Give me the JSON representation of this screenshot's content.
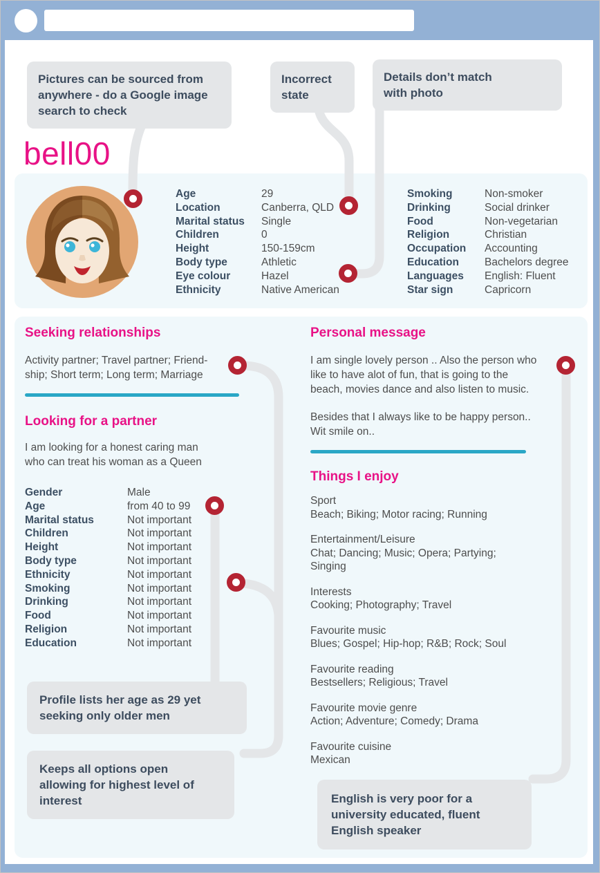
{
  "colors": {
    "blue": "#93b1d5",
    "panel": "#f0f8fb",
    "callout": "#e4e6e8",
    "slate": "#3d4c5e",
    "pink": "#e81286",
    "teal": "#2aa7c6",
    "red": "#b42433",
    "text": "#4d4d4d",
    "label": "#3c4f63"
  },
  "chrome": {
    "address_value": ""
  },
  "callouts": {
    "pictures": {
      "lines": [
        "Pictures can be sourced from",
        "anywhere - do a Google image",
        "search to check"
      ]
    },
    "incorrect_state": {
      "lines": [
        "Incorrect",
        "state"
      ]
    },
    "details_mismatch": {
      "lines": [
        "Details don’t match",
        "with photo"
      ]
    },
    "age_gap": {
      "lines": [
        "Profile lists her age as 29 yet",
        "seeking only older men"
      ]
    },
    "options_open": {
      "lines": [
        "Keeps all options open",
        "allowing for highest level of",
        "interest"
      ]
    },
    "english_poor": {
      "lines": [
        "English is very poor for a",
        "university educated, fluent",
        "English speaker"
      ]
    }
  },
  "profile": {
    "username": "bell00",
    "details_left": [
      {
        "label": "Age",
        "value": "29"
      },
      {
        "label": "Location",
        "value": "Canberra, QLD"
      },
      {
        "label": "Marital status",
        "value": "Single"
      },
      {
        "label": "Children",
        "value": "0"
      },
      {
        "label": "Height",
        "value": "150-159cm"
      },
      {
        "label": "Body type",
        "value": "Athletic"
      },
      {
        "label": "Eye colour",
        "value": "Hazel"
      },
      {
        "label": "Ethnicity",
        "value": "Native American"
      }
    ],
    "details_right": [
      {
        "label": "Smoking",
        "value": "Non-smoker"
      },
      {
        "label": "Drinking",
        "value": "Social drinker"
      },
      {
        "label": "Food",
        "value": "Non-vegetarian"
      },
      {
        "label": "Religion",
        "value": "Christian"
      },
      {
        "label": "Occupation",
        "value": "Accounting"
      },
      {
        "label": "Education",
        "value": "Bachelors degree"
      },
      {
        "label": "Languages",
        "value": "English: Fluent"
      },
      {
        "label": "Star sign",
        "value": "Capricorn"
      }
    ]
  },
  "sections": {
    "seeking": {
      "title": "Seeking relationships",
      "lines": [
        "Activity partner; Travel partner; Friend-",
        "ship; Short term; Long term; Marriage"
      ]
    },
    "looking": {
      "title": "Looking for a partner",
      "lines": [
        "I am looking for a honest caring man",
        "who can treat his woman as a Queen"
      ],
      "preferences": [
        {
          "label": "Gender",
          "value": "Male"
        },
        {
          "label": "Age",
          "value": "from 40 to 99"
        },
        {
          "label": "Marital status",
          "value": "Not important"
        },
        {
          "label": "Children",
          "value": "Not important"
        },
        {
          "label": "Height",
          "value": "Not important"
        },
        {
          "label": "Body type",
          "value": "Not important"
        },
        {
          "label": "Ethnicity",
          "value": "Not important"
        },
        {
          "label": "Smoking",
          "value": "Not important"
        },
        {
          "label": "Drinking",
          "value": "Not important"
        },
        {
          "label": "Food",
          "value": "Not important"
        },
        {
          "label": "Religion",
          "value": "Not important"
        },
        {
          "label": "Education",
          "value": "Not important"
        }
      ]
    },
    "personal": {
      "title": "Personal message",
      "paragraph1": [
        "I am single lovely person .. Also the person who",
        "like to have alot of fun, that is going to the",
        "beach, movies dance and also listen to music."
      ],
      "paragraph2": [
        "Besides that I always like to be happy person..",
        "Wit smile on.."
      ]
    },
    "enjoy": {
      "title": "Things I enjoy",
      "groups": [
        {
          "category": "Sport",
          "lines": [
            "Beach; Biking; Motor racing; Running"
          ]
        },
        {
          "category": "Entertainment/Leisure",
          "lines": [
            "Chat; Dancing; Music; Opera; Partying;",
            "Singing"
          ]
        },
        {
          "category": "Interests",
          "lines": [
            "Cooking; Photography; Travel"
          ]
        },
        {
          "category": "Favourite music",
          "lines": [
            "Blues; Gospel; Hip-hop; R&B; Rock; Soul"
          ]
        },
        {
          "category": "Favourite reading",
          "lines": [
            "Bestsellers; Religious; Travel"
          ]
        },
        {
          "category": "Favourite movie genre",
          "lines": [
            "Action; Adventure; Comedy; Drama"
          ]
        },
        {
          "category": "Favourite cuisine",
          "lines": [
            "Mexican"
          ]
        }
      ]
    }
  }
}
